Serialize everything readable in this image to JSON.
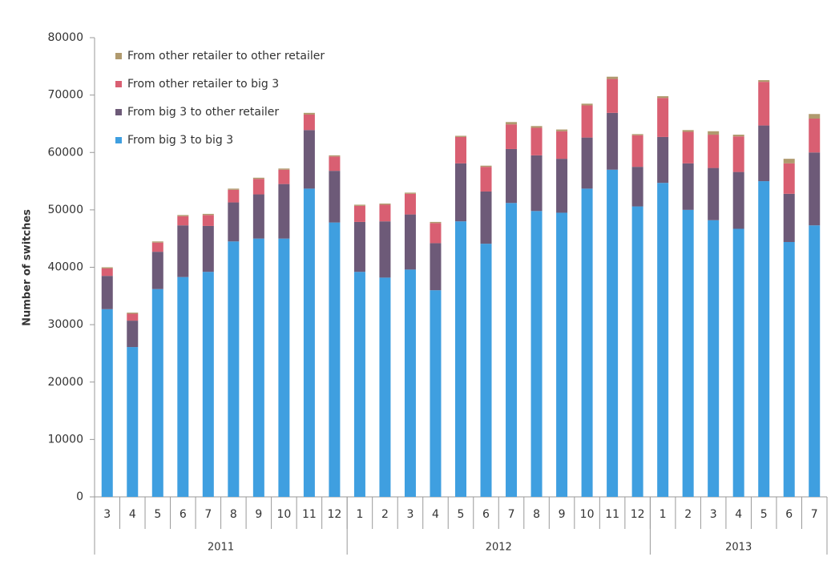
{
  "chart_data": {
    "type": "stacked_bar",
    "y_label": "Number of switches",
    "groups": [
      {
        "label": "2011",
        "categories": [
          "3",
          "4",
          "5",
          "6",
          "7",
          "8",
          "9",
          "10",
          "11",
          "12"
        ]
      },
      {
        "label": "2012",
        "categories": [
          "1",
          "2",
          "3",
          "4",
          "5",
          "6",
          "7",
          "8",
          "9",
          "10",
          "11",
          "12"
        ]
      },
      {
        "label": "2013",
        "categories": [
          "1",
          "2",
          "3",
          "4",
          "5",
          "6",
          "7"
        ]
      }
    ],
    "series": [
      {
        "name": "From big 3 to big 3",
        "color": "#3f9fe0",
        "values": [
          32700,
          26100,
          36200,
          38300,
          39200,
          44500,
          45000,
          45000,
          53700,
          47800,
          39200,
          38200,
          39600,
          36000,
          48000,
          44100,
          51200,
          49800,
          49500,
          53700,
          57000,
          50600,
          54700,
          50000,
          48200,
          46700,
          55000,
          44400,
          47300
        ]
      },
      {
        "name": "From big 3 to other retailer",
        "color": "#6d5a78",
        "values": [
          5800,
          4600,
          6500,
          9000,
          8000,
          6800,
          7700,
          9500,
          10200,
          9000,
          8700,
          9800,
          9600,
          8200,
          10100,
          9100,
          9400,
          9700,
          9400,
          8900,
          9900,
          6900,
          8000,
          8100,
          9100,
          9900,
          9700,
          8400,
          12700
        ]
      },
      {
        "name": "From other retailer to big 3",
        "color": "#d95f72",
        "values": [
          1300,
          1200,
          1600,
          1600,
          1900,
          2200,
          2700,
          2500,
          2700,
          2500,
          2800,
          2900,
          3600,
          3500,
          4600,
          4300,
          4300,
          4800,
          4800,
          5600,
          5900,
          5500,
          6800,
          5500,
          5800,
          6200,
          7600,
          5300,
          5900
        ]
      },
      {
        "name": "From other retailer to other retailer",
        "color": "#b09a6e",
        "values": [
          200,
          200,
          200,
          200,
          200,
          200,
          200,
          200,
          300,
          200,
          200,
          200,
          200,
          200,
          200,
          200,
          400,
          300,
          300,
          300,
          400,
          200,
          300,
          300,
          600,
          300,
          300,
          800,
          800
        ]
      }
    ],
    "ylim": [
      0,
      80000
    ],
    "yticks": [
      0,
      10000,
      20000,
      30000,
      40000,
      50000,
      60000,
      70000,
      80000
    ],
    "legend": "upper-left"
  }
}
